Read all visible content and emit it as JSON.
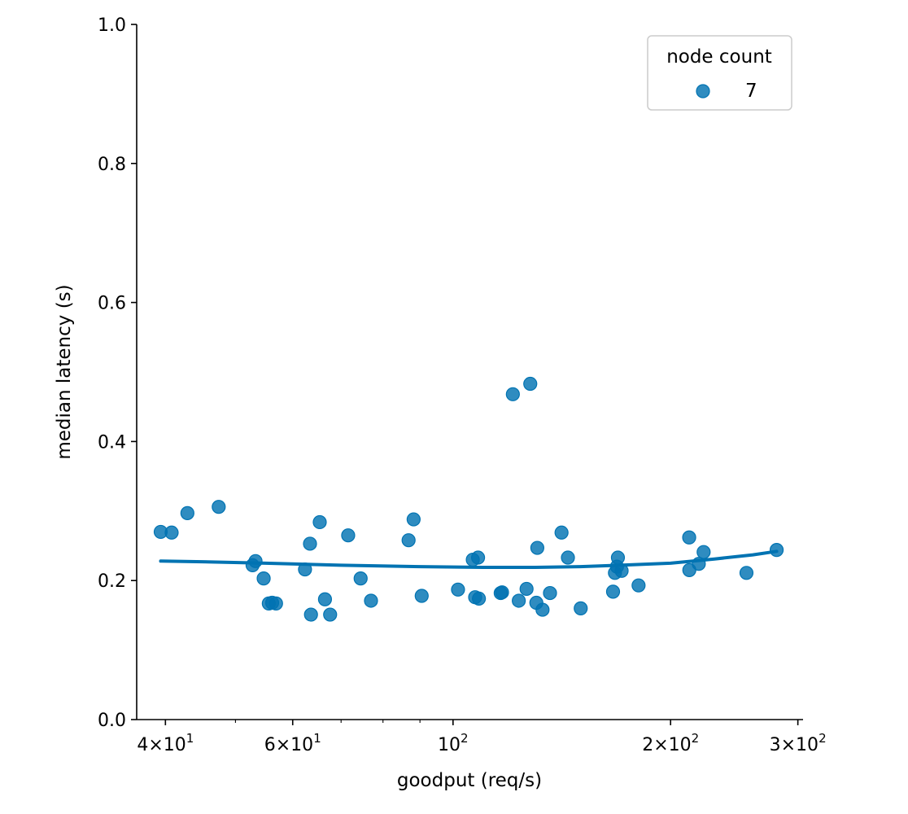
{
  "chart_data": {
    "type": "scatter",
    "title": "",
    "xlabel": "goodput (req/s)",
    "ylabel": "median latency (s)",
    "xscale": "log",
    "xlim": [
      36.5,
      305
    ],
    "ylim": [
      0.0,
      1.0
    ],
    "grid": false,
    "legend": {
      "title": "node count",
      "placement": "top-right"
    },
    "x_ticks": [
      {
        "value": 40,
        "base": "4",
        "exp": "1"
      },
      {
        "value": 60,
        "base": "6",
        "exp": "1"
      },
      {
        "value": 100,
        "base": "",
        "exp": "2"
      },
      {
        "value": 200,
        "base": "2",
        "exp": "2"
      },
      {
        "value": 300,
        "base": "3",
        "exp": "2"
      }
    ],
    "y_ticks": [
      {
        "value": 0.0,
        "label": "0.0"
      },
      {
        "value": 0.2,
        "label": "0.2"
      },
      {
        "value": 0.4,
        "label": "0.4"
      },
      {
        "value": 0.6,
        "label": "0.6"
      },
      {
        "value": 0.8,
        "label": "0.8"
      },
      {
        "value": 1.0,
        "label": "1.0"
      }
    ],
    "series": [
      {
        "name": "7",
        "color": "#0173B2",
        "points": [
          [
            39.4,
            0.27
          ],
          [
            40.8,
            0.269
          ],
          [
            42.9,
            0.297
          ],
          [
            47.4,
            0.306
          ],
          [
            52.8,
            0.222
          ],
          [
            53.3,
            0.228
          ],
          [
            54.7,
            0.203
          ],
          [
            55.6,
            0.167
          ],
          [
            56.2,
            0.168
          ],
          [
            56.9,
            0.167
          ],
          [
            62.4,
            0.216
          ],
          [
            63.4,
            0.253
          ],
          [
            63.6,
            0.151
          ],
          [
            65.4,
            0.284
          ],
          [
            66.5,
            0.173
          ],
          [
            67.6,
            0.151
          ],
          [
            71.6,
            0.265
          ],
          [
            74.5,
            0.203
          ],
          [
            77.0,
            0.171
          ],
          [
            86.8,
            0.258
          ],
          [
            88.2,
            0.288
          ],
          [
            90.5,
            0.178
          ],
          [
            101.6,
            0.187
          ],
          [
            106.5,
            0.23
          ],
          [
            107.3,
            0.176
          ],
          [
            108.3,
            0.233
          ],
          [
            108.6,
            0.174
          ],
          [
            116.4,
            0.182
          ],
          [
            116.9,
            0.183
          ],
          [
            121.0,
            0.468
          ],
          [
            123.3,
            0.171
          ],
          [
            126.4,
            0.188
          ],
          [
            127.9,
            0.483
          ],
          [
            130.8,
            0.247
          ],
          [
            130.4,
            0.168
          ],
          [
            133.0,
            0.158
          ],
          [
            136.2,
            0.182
          ],
          [
            141.3,
            0.269
          ],
          [
            144.2,
            0.233
          ],
          [
            150.2,
            0.16
          ],
          [
            166.5,
            0.184
          ],
          [
            167.5,
            0.211
          ],
          [
            168.6,
            0.22
          ],
          [
            169.1,
            0.233
          ],
          [
            171.1,
            0.214
          ],
          [
            180.6,
            0.193
          ],
          [
            212.2,
            0.262
          ],
          [
            212.3,
            0.215
          ],
          [
            218.8,
            0.224
          ],
          [
            222.2,
            0.241
          ],
          [
            254.7,
            0.211
          ],
          [
            280.4,
            0.244
          ]
        ]
      }
    ],
    "trend_line": {
      "color": "#0173B2",
      "points": [
        [
          39.4,
          0.228
        ],
        [
          45,
          0.227
        ],
        [
          55,
          0.225
        ],
        [
          70,
          0.222
        ],
        [
          90,
          0.22
        ],
        [
          110,
          0.219
        ],
        [
          130,
          0.219
        ],
        [
          150,
          0.22
        ],
        [
          170,
          0.222
        ],
        [
          200,
          0.225
        ],
        [
          230,
          0.231
        ],
        [
          260,
          0.237
        ],
        [
          280.4,
          0.242
        ]
      ]
    }
  }
}
